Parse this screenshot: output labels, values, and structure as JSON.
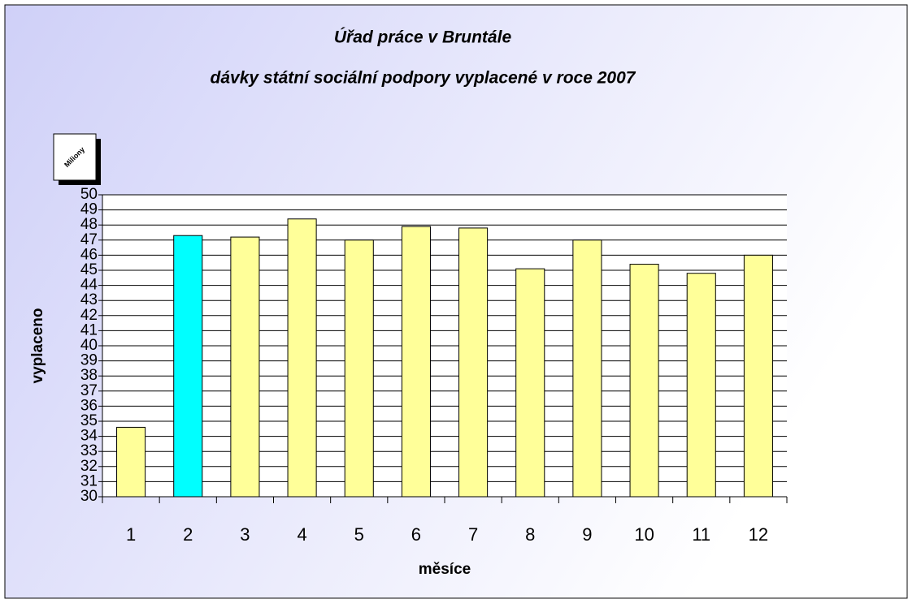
{
  "chart_data": {
    "type": "bar",
    "title": "Úřad práce v Bruntále",
    "subtitle": "dávky státní sociální podpory vyplacené v roce 2007",
    "unit_label": "Miliony",
    "y_label": "vyplaceno",
    "x_label": "měsíce",
    "categories": [
      "1",
      "2",
      "3",
      "4",
      "5",
      "6",
      "7",
      "8",
      "9",
      "10",
      "11",
      "12"
    ],
    "values": [
      34.6,
      47.3,
      47.2,
      48.4,
      47.0,
      47.9,
      47.8,
      45.1,
      47.0,
      45.4,
      44.8,
      46.0
    ],
    "colors": [
      "#ffff99",
      "#00ffff",
      "#ffff99",
      "#ffff99",
      "#ffff99",
      "#ffff99",
      "#ffff99",
      "#ffff99",
      "#ffff99",
      "#ffff99",
      "#ffff99",
      "#ffff99"
    ],
    "ylim": [
      30,
      50
    ],
    "yticks": [
      30,
      31,
      32,
      33,
      34,
      35,
      36,
      37,
      38,
      39,
      40,
      41,
      42,
      43,
      44,
      45,
      46,
      47,
      48,
      49,
      50
    ],
    "grid": true
  }
}
